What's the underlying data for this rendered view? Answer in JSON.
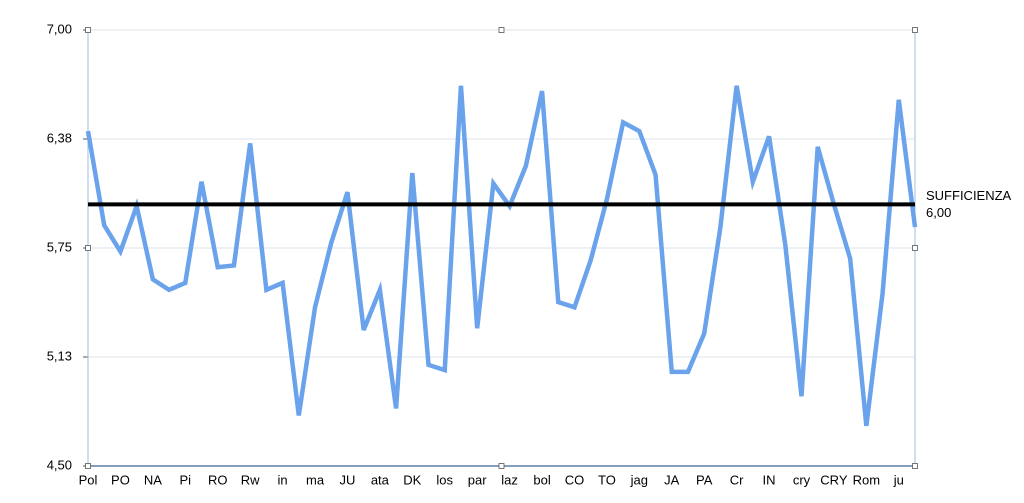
{
  "chart_data": {
    "type": "line",
    "categories": [
      "Pol",
      null,
      "PO",
      null,
      "NA",
      null,
      "Pi",
      null,
      "RO",
      null,
      "Rw",
      null,
      "in",
      null,
      "ma",
      null,
      "JU",
      null,
      "ata",
      null,
      "DK",
      null,
      "los",
      null,
      "par",
      null,
      "laz",
      null,
      "bol",
      null,
      "CO",
      null,
      "TO",
      null,
      "jag",
      null,
      "JA",
      null,
      "PA",
      null,
      "Cr",
      null,
      "IN",
      null,
      "cry",
      null,
      "CRY",
      null,
      "Rom",
      null,
      "ju",
      null
    ],
    "values": [
      6.42,
      5.88,
      5.73,
      5.99,
      5.57,
      5.51,
      5.55,
      6.13,
      5.64,
      5.65,
      6.35,
      5.51,
      5.55,
      4.79,
      5.41,
      5.78,
      6.07,
      5.28,
      5.51,
      4.83,
      6.18,
      5.08,
      5.05,
      6.68,
      5.29,
      6.12,
      5.99,
      6.22,
      6.65,
      5.44,
      5.41,
      5.68,
      6.03,
      6.47,
      6.42,
      6.17,
      5.04,
      5.04,
      5.26,
      5.87,
      6.68,
      6.13,
      6.39,
      5.77,
      4.9,
      6.33,
      6.0,
      5.69,
      4.73,
      5.49,
      6.6,
      5.87
    ],
    "color": "#6aa3ec",
    "ylim": [
      4.5,
      7.0
    ],
    "yticks": [
      {
        "value": 4.5,
        "label": "4,50"
      },
      {
        "value": 5.125,
        "label": "5,13"
      },
      {
        "value": 5.75,
        "label": "5,75"
      },
      {
        "value": 6.375,
        "label": "6,38"
      },
      {
        "value": 7.0,
        "label": "7,00"
      }
    ],
    "grid": true,
    "reference_line": {
      "value": 6.0,
      "label": "SUFFICIENZA",
      "value_label": "6,00",
      "color": "#000000"
    }
  }
}
